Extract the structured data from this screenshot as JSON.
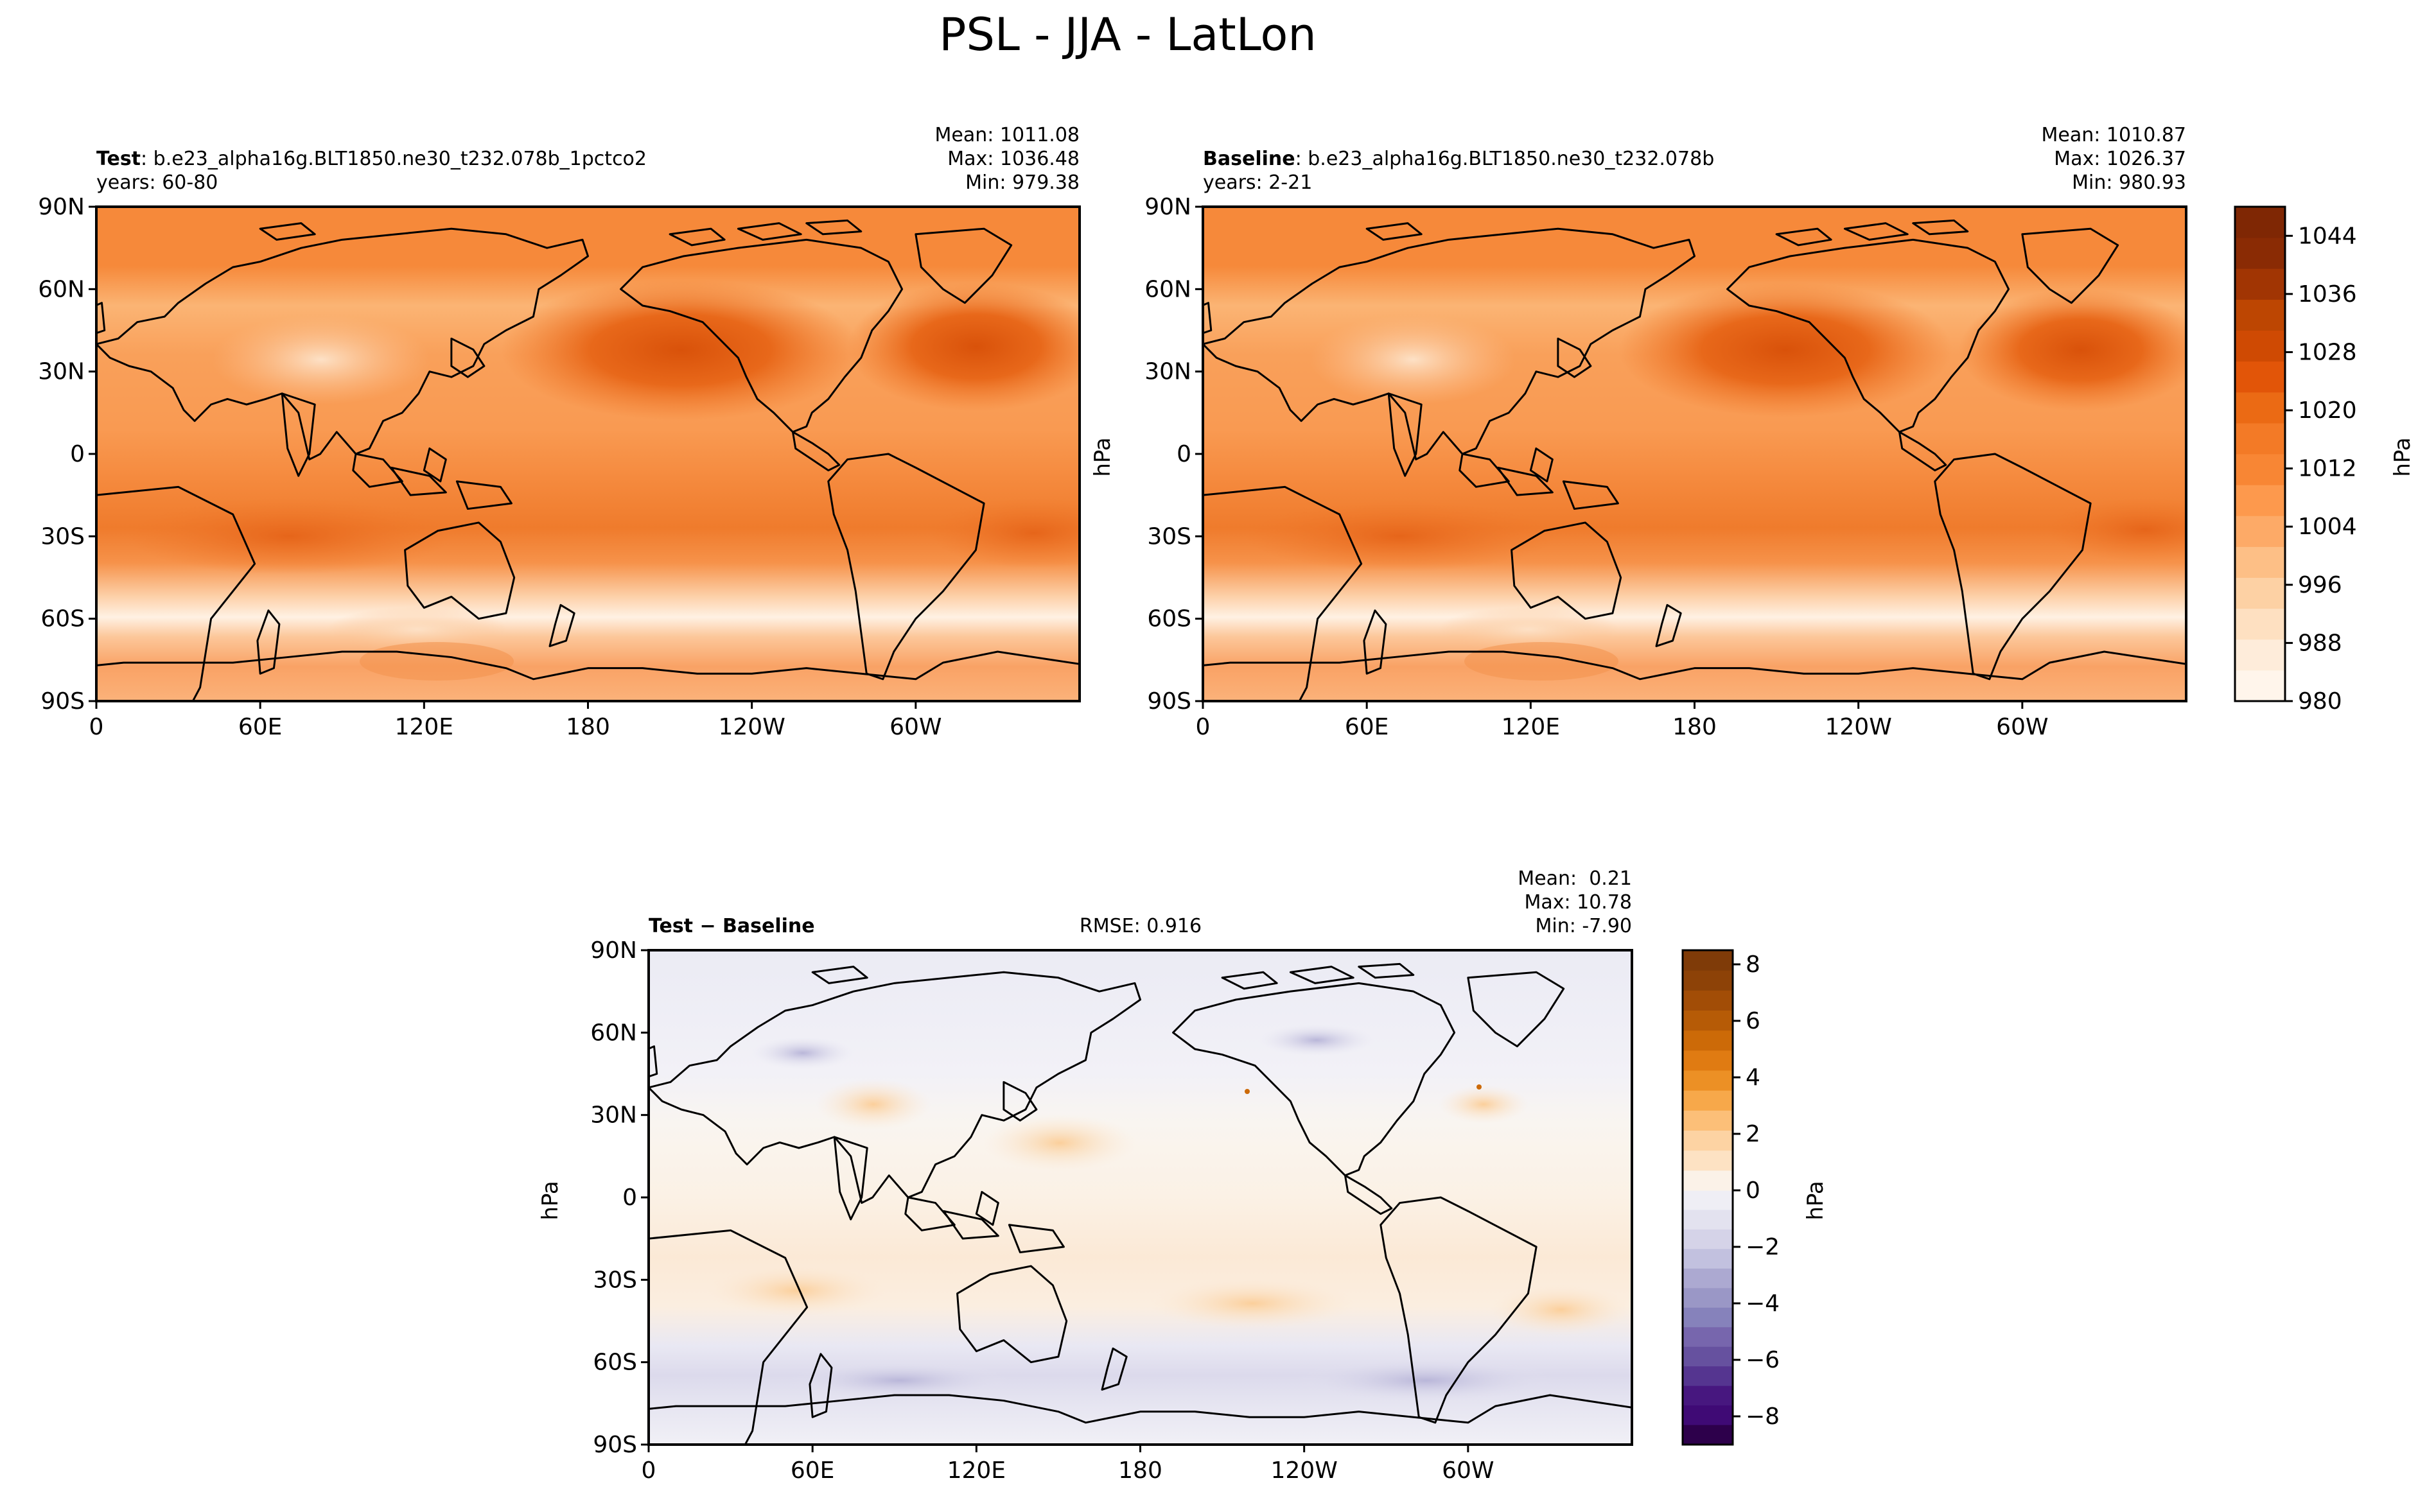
{
  "figure": {
    "title": "PSL - JJA - LatLon"
  },
  "colors": {
    "seq": [
      "#fff5eb",
      "#feecda",
      "#fee0c1",
      "#fdd1a4",
      "#fdbf86",
      "#fdaa67",
      "#fd994d",
      "#f88634",
      "#f37a26",
      "#eb6a14",
      "#e25508",
      "#cf4a03",
      "#bd4602",
      "#a13503",
      "#8a2b04",
      "#7f2704"
    ],
    "div_neg": [
      "#efeef5",
      "#e3e2ef",
      "#d5d3e8",
      "#c2c1df",
      "#aca9d1",
      "#9a97c6",
      "#8682bb",
      "#7766ad",
      "#66519f",
      "#553590",
      "#47177f",
      "#3f0a75",
      "#2d004b"
    ],
    "div_pos": [
      "#fbf2e8",
      "#fde2c3",
      "#fdd3a3",
      "#fcbf78",
      "#f7a84a",
      "#ec9025",
      "#e07b12",
      "#cc6a08",
      "#b65b06",
      "#a24d06",
      "#8d4207",
      "#7f3b08"
    ]
  },
  "panels": {
    "test": {
      "label_bold": "Test",
      "label_rest": ": b.e23_alpha16g.BLT1850.ne30_t232.078b_1pctco2",
      "years": "years: 60-80",
      "mean": "Mean: 1011.08",
      "max": "Max: 1036.48",
      "min": "Min: 979.38"
    },
    "baseline": {
      "label_bold": "Baseline",
      "label_rest": ": b.e23_alpha16g.BLT1850.ne30_t232.078b",
      "years": "years: 2-21",
      "mean": "Mean: 1010.87",
      "max": "Max: 1026.37",
      "min": "Min: 980.93"
    },
    "diff": {
      "label": "Test − Baseline",
      "rmse": "RMSE: 0.916",
      "mean": "Mean:  0.21",
      "max": "Max: 10.78",
      "min": "Min: -7.90"
    }
  },
  "chart_data": [
    {
      "type": "heatmap",
      "title": "Test",
      "units": "hPa",
      "x_ticks": [
        "0",
        "60E",
        "120E",
        "180",
        "120W",
        "60W"
      ],
      "y_ticks": [
        "90N",
        "60N",
        "30N",
        "0",
        "30S",
        "60S",
        "90S"
      ],
      "xlim": [
        0,
        360
      ],
      "ylim": [
        -90,
        90
      ],
      "stats": {
        "mean": 1011.08,
        "max": 1036.48,
        "min": 979.38
      }
    },
    {
      "type": "heatmap",
      "title": "Baseline",
      "units": "hPa",
      "x_ticks": [
        "0",
        "60E",
        "120E",
        "180",
        "120W",
        "60W"
      ],
      "y_ticks": [
        "90N",
        "60N",
        "30N",
        "0",
        "30S",
        "60S",
        "90S"
      ],
      "xlim": [
        0,
        360
      ],
      "ylim": [
        -90,
        90
      ],
      "stats": {
        "mean": 1010.87,
        "max": 1026.37,
        "min": 980.93
      },
      "colorbar": {
        "label": "hPa",
        "ticks": [
          "980",
          "988",
          "996",
          "1004",
          "1012",
          "1020",
          "1028",
          "1036",
          "1044"
        ],
        "range": [
          980,
          1048
        ]
      }
    },
    {
      "type": "heatmap",
      "title": "Test − Baseline",
      "units": "hPa",
      "x_ticks": [
        "0",
        "60E",
        "120E",
        "180",
        "120W",
        "60W"
      ],
      "y_ticks": [
        "90N",
        "60N",
        "30N",
        "0",
        "30S",
        "60S",
        "90S"
      ],
      "xlim": [
        0,
        360
      ],
      "ylim": [
        -90,
        90
      ],
      "stats": {
        "mean": 0.21,
        "max": 10.78,
        "min": -7.9,
        "rmse": 0.916
      },
      "colorbar": {
        "label": "hPa",
        "ticks": [
          "−8",
          "−6",
          "−4",
          "−2",
          "0",
          "2",
          "4",
          "6",
          "8"
        ],
        "range": [
          -9,
          8.5
        ]
      }
    }
  ]
}
